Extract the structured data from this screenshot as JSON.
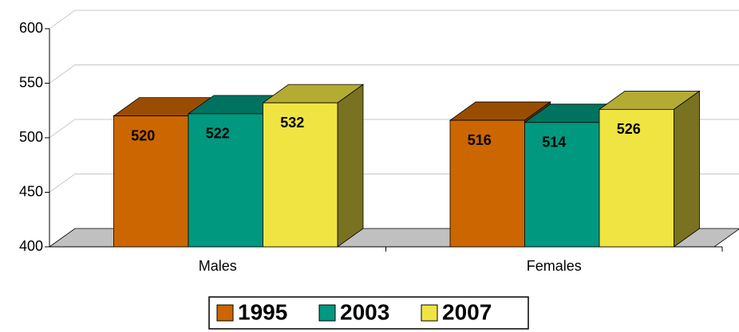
{
  "chart_data": {
    "type": "bar3d",
    "categories": [
      "Males",
      "Females"
    ],
    "series": [
      {
        "name": "1995",
        "color": "#cc6600",
        "values": [
          520,
          516
        ]
      },
      {
        "name": "2003",
        "color": "#009980",
        "values": [
          522,
          514
        ]
      },
      {
        "name": "2007",
        "color": "#f0e442",
        "values": [
          532,
          526
        ]
      }
    ],
    "ylim": [
      400,
      600
    ],
    "yticks": [
      400,
      450,
      500,
      550,
      600
    ],
    "grid": true,
    "legend": "bottom"
  }
}
